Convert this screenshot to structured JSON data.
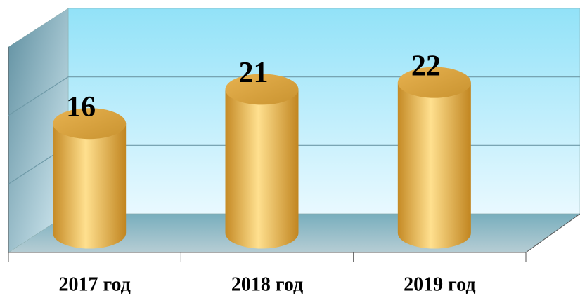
{
  "chart_data": {
    "type": "cylinder-bar",
    "categories": [
      "2017 год",
      "2018 год",
      "2019 год"
    ],
    "values": [
      16,
      21,
      22
    ],
    "color": "#f5c24e",
    "ylim": [
      0,
      30
    ],
    "yticks": [
      0,
      10,
      20,
      30
    ],
    "grid": true
  }
}
